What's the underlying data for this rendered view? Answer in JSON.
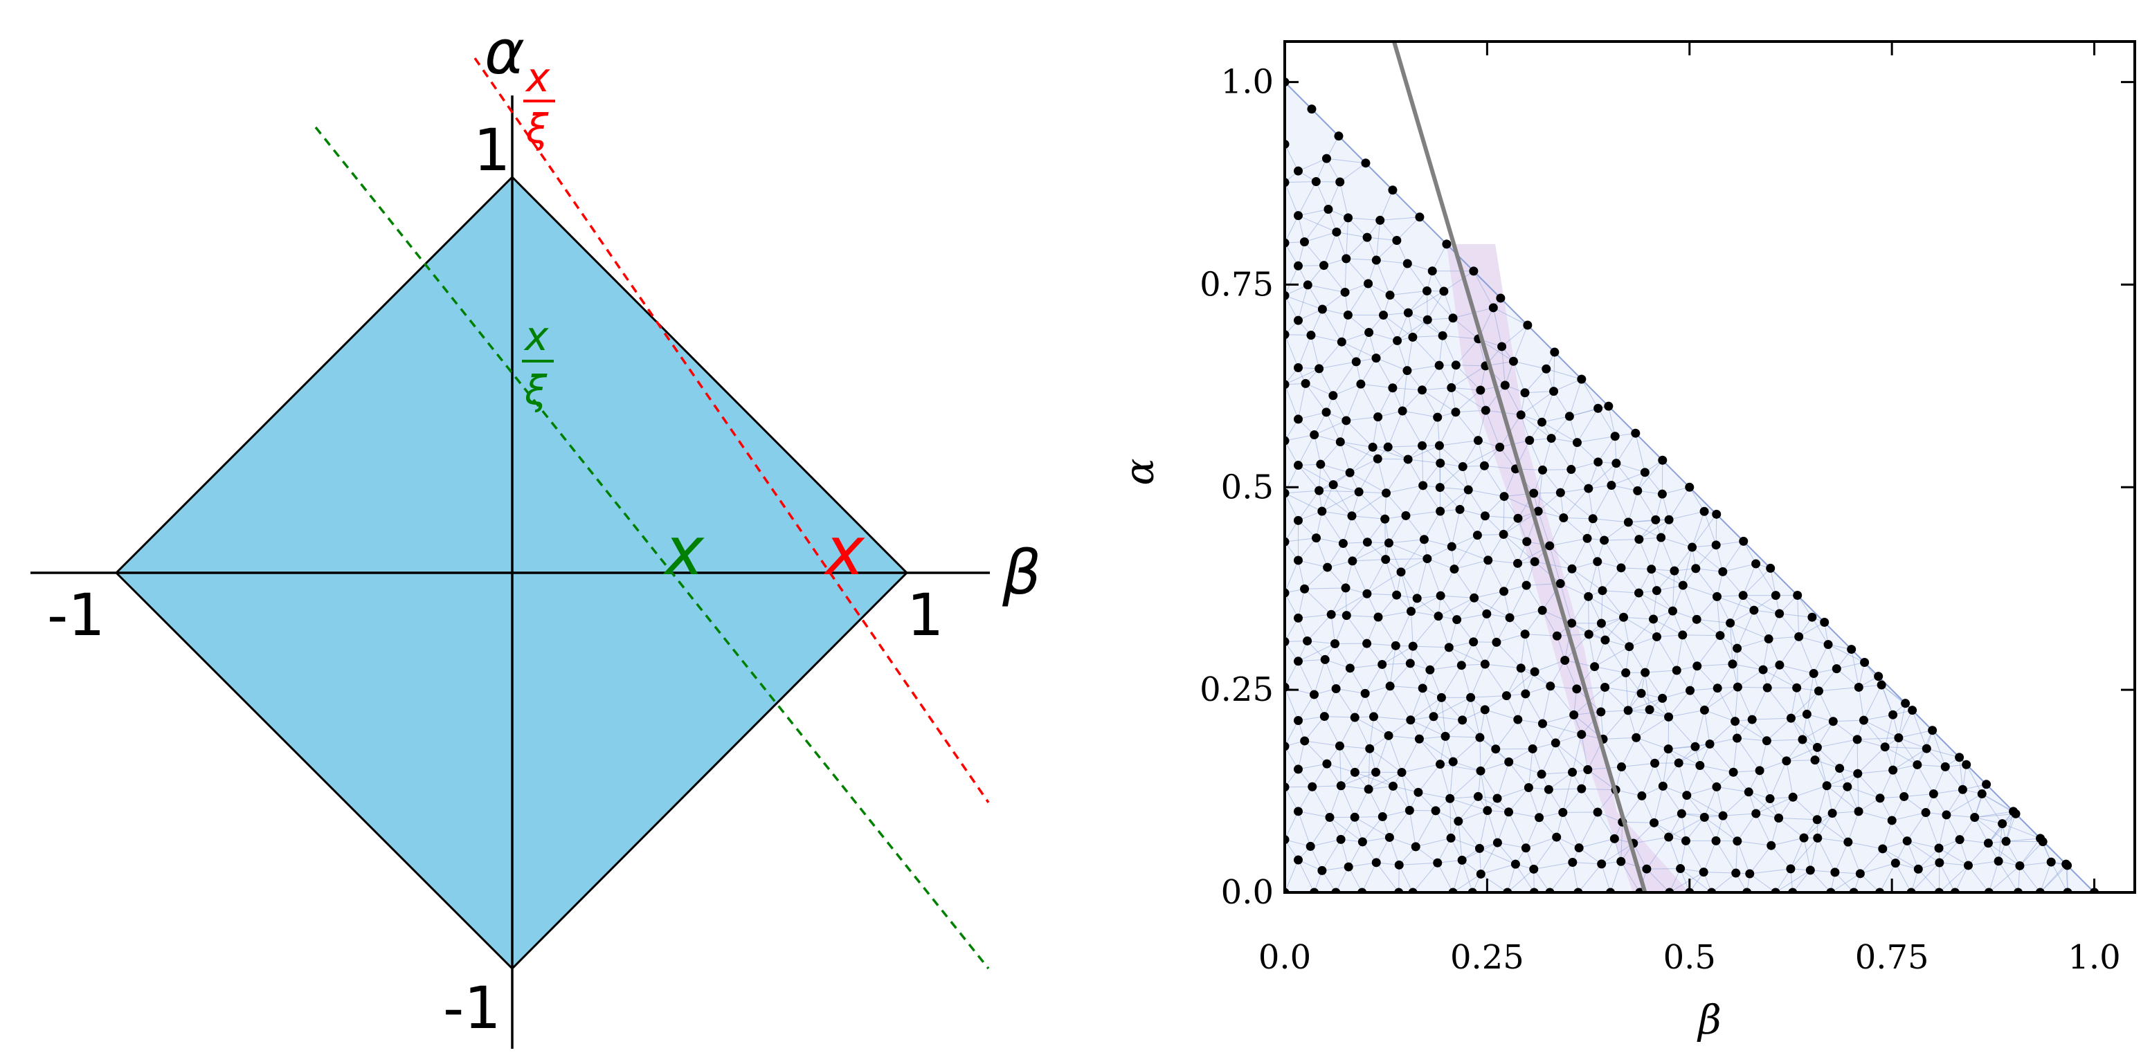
{
  "colors": {
    "diamond_fill": "#87CEEB",
    "red": "#ff0000",
    "green": "#008000",
    "black": "#000000",
    "mesh_fill": "#eef3fc",
    "mesh_line": "#8aa0d8",
    "band_fill": "#e6d8f0",
    "boundary_line": "#808080"
  },
  "left": {
    "axis_alpha": "α",
    "axis_beta": "β",
    "tick_alpha_top": "1",
    "tick_alpha_bottom": "-1",
    "tick_beta_right": "1",
    "tick_beta_left": "-1",
    "red_line_label": "x",
    "red_fraction_numerator": "x",
    "red_fraction_denominator": "ξ",
    "green_line_label": "x",
    "green_fraction_numerator": "x",
    "green_fraction_denominator": "ξ"
  },
  "chart_data": {
    "type": "scatter",
    "xlabel": "β",
    "ylabel": "α",
    "xlim": [
      0.0,
      1.05
    ],
    "ylim": [
      0.0,
      1.05
    ],
    "xticks": [
      "0.0",
      "0.25",
      "0.5",
      "0.75",
      "1.0"
    ],
    "yticks": [
      "0.0",
      "0.25",
      "0.5",
      "0.75",
      "1.0"
    ],
    "xtick_values": [
      0.0,
      0.25,
      0.5,
      0.75,
      1.0
    ],
    "ytick_values": [
      0.0,
      0.25,
      0.5,
      0.75,
      1.0
    ],
    "domain": "triangle α + β ≤ 1, α ≥ 0, β ≥ 0",
    "boundary_line": [
      [
        0.135,
        1.05
      ],
      [
        0.445,
        0.0
      ]
    ],
    "band": [
      [
        0.2,
        0.8
      ],
      [
        0.26,
        0.8
      ],
      [
        0.3,
        0.55
      ],
      [
        0.37,
        0.3
      ],
      [
        0.41,
        0.1
      ],
      [
        0.5,
        0.0
      ],
      [
        0.43,
        0.0
      ],
      [
        0.36,
        0.2
      ],
      [
        0.29,
        0.45
      ],
      [
        0.22,
        0.65
      ]
    ],
    "grid": false
  }
}
